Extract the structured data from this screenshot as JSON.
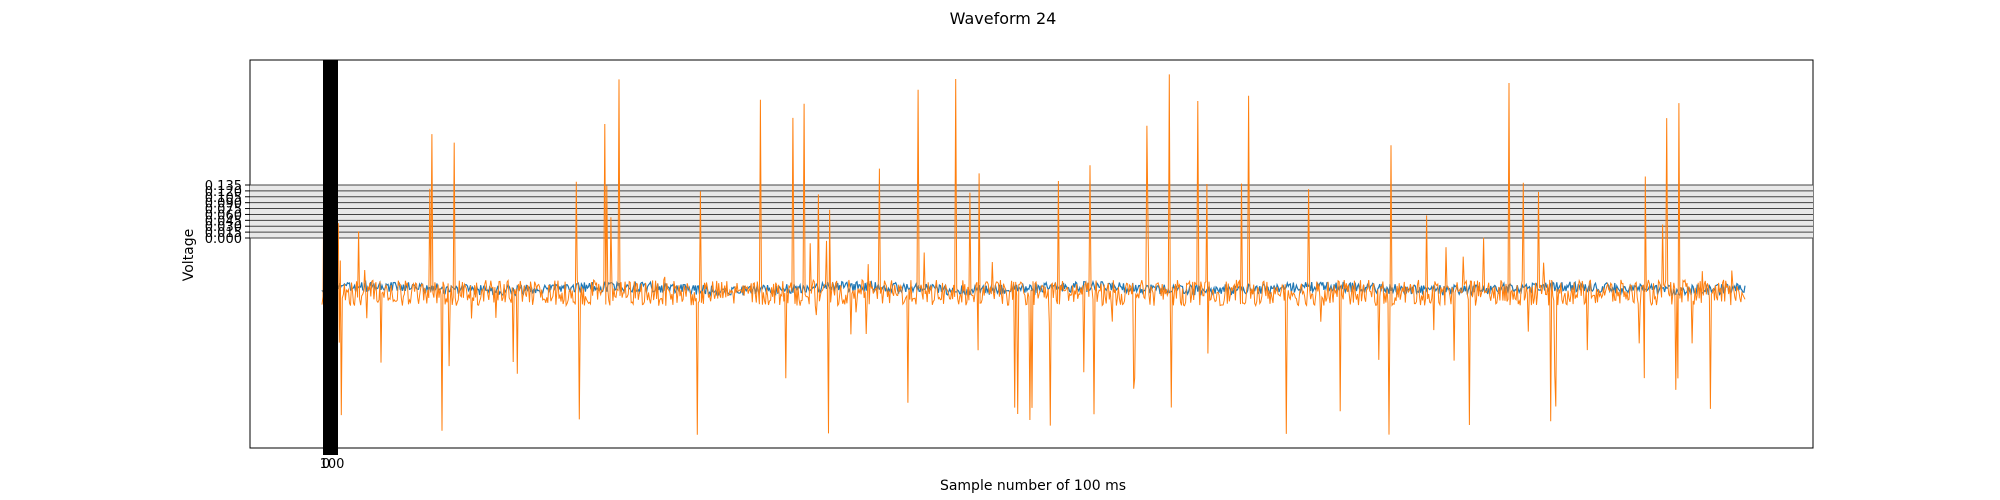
{
  "chart_data": {
    "type": "line",
    "title": "Waveform 24",
    "xlabel": "Sample number of 100 ms",
    "ylabel": "Voltage",
    "ytick_labels": [
      "0.000",
      "0.015",
      "0.030",
      "0.045",
      "0.060",
      "0.075",
      "0.090",
      "0.105",
      "0.120",
      "0.135"
    ],
    "xtick_labels": [
      "0",
      "100"
    ],
    "grid": false,
    "legend": "none",
    "series": [
      {
        "color": "#1f77b4",
        "description": "low-amplitude baseline signal",
        "baseline": -0.08,
        "amplitude": 0.012,
        "samples": 1400
      },
      {
        "color": "#ff7f0e",
        "description": "noisy signal with frequent spikes",
        "baseline": -0.09,
        "amplitude": 0.03,
        "spike_max": 0.45,
        "spike_min": -0.42,
        "samples": 1400
      }
    ],
    "band_color": "#e8e8e8",
    "marker_bar_color": "#000000"
  }
}
